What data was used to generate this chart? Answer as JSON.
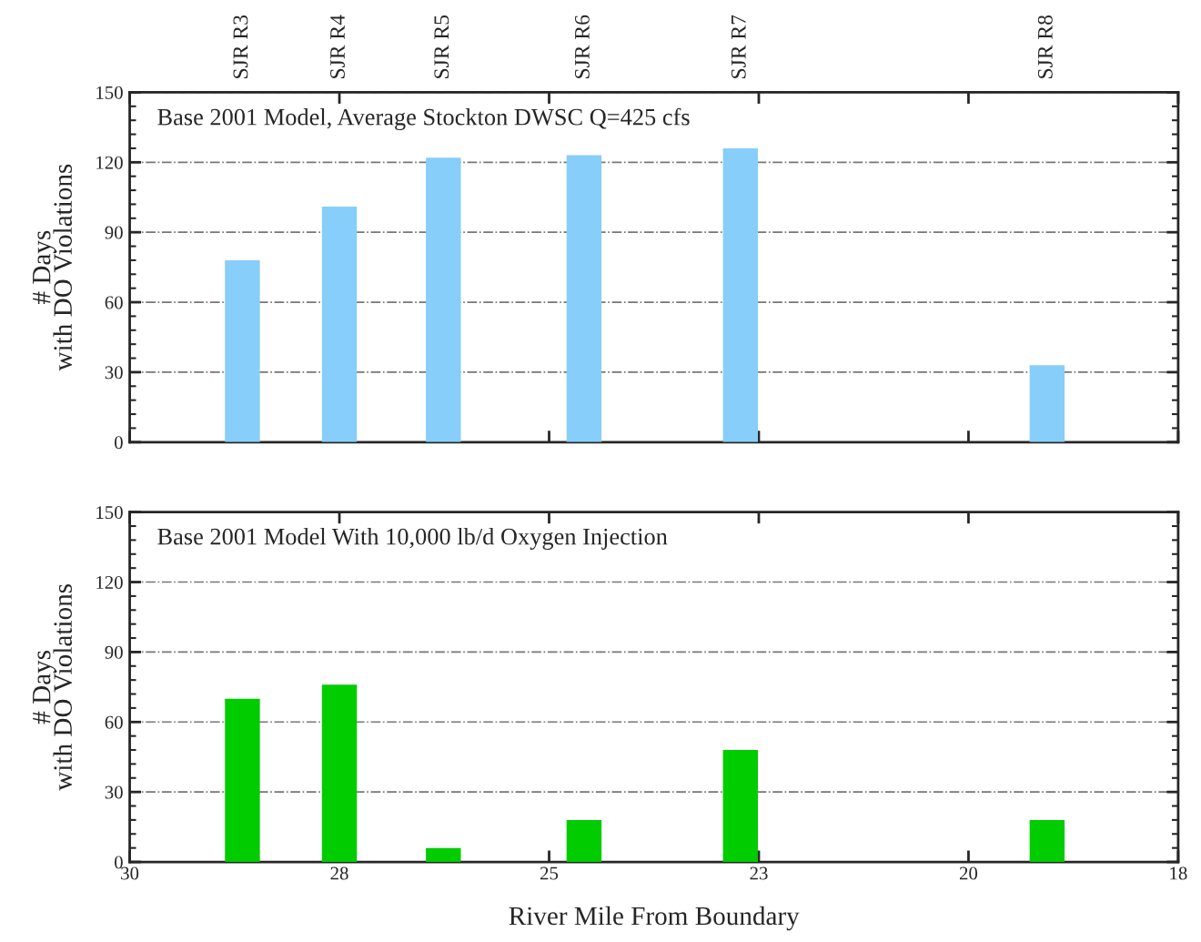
{
  "chart_data": [
    {
      "type": "bar",
      "annotations": [
        "Base 2001 Model, Average Stockton DWSC Q=425 cfs",
        "SJR R3",
        "SJR R4",
        "SJR R5",
        "SJR R6",
        "SJR R7",
        "SJR R8"
      ],
      "ylabel": "# Days\nwith DO Violations",
      "x": [
        28.71,
        27.6,
        26.41,
        24.8,
        23.01,
        19.5
      ],
      "series": [
        {
          "color": "#87cefa",
          "values": [
            78,
            101,
            122,
            123,
            126,
            33
          ]
        }
      ],
      "xlim": [
        30,
        18
      ],
      "xticks": [
        {
          "value": 30,
          "label": null
        },
        {
          "value": 27.6,
          "label": null
        },
        {
          "value": 25.2,
          "label": null
        },
        {
          "value": 22.8,
          "label": null
        },
        {
          "value": 20.4,
          "label": null
        },
        {
          "value": 18,
          "label": null
        }
      ],
      "ylim": [
        0,
        150
      ],
      "yticks": [
        0,
        30,
        60,
        90,
        120,
        150
      ],
      "grid": "y",
      "tick_labels": "y"
    },
    {
      "type": "bar",
      "annotations": [
        "Base 2001 Model With 10,000 lb/d Oxygen Injection"
      ],
      "ylabel": "# Days\nwith DO Violations",
      "xlabel": "River Mile From Boundary",
      "x": [
        28.71,
        27.6,
        26.41,
        24.8,
        23.01,
        19.5
      ],
      "series": [
        {
          "color": "#00cc00",
          "values": [
            70,
            76,
            6,
            18,
            48,
            18
          ]
        }
      ],
      "xlim": [
        30,
        18
      ],
      "xticks": [
        30,
        {
          "value": 27.6,
          "label": "28"
        },
        {
          "value": 25.2,
          "label": "25"
        },
        {
          "value": 22.8,
          "label": "23"
        },
        {
          "value": 20.4,
          "label": "20"
        },
        18
      ],
      "ylim": [
        0,
        150
      ],
      "yticks": [
        0,
        30,
        60,
        90,
        120,
        150
      ],
      "grid": "y"
    }
  ]
}
